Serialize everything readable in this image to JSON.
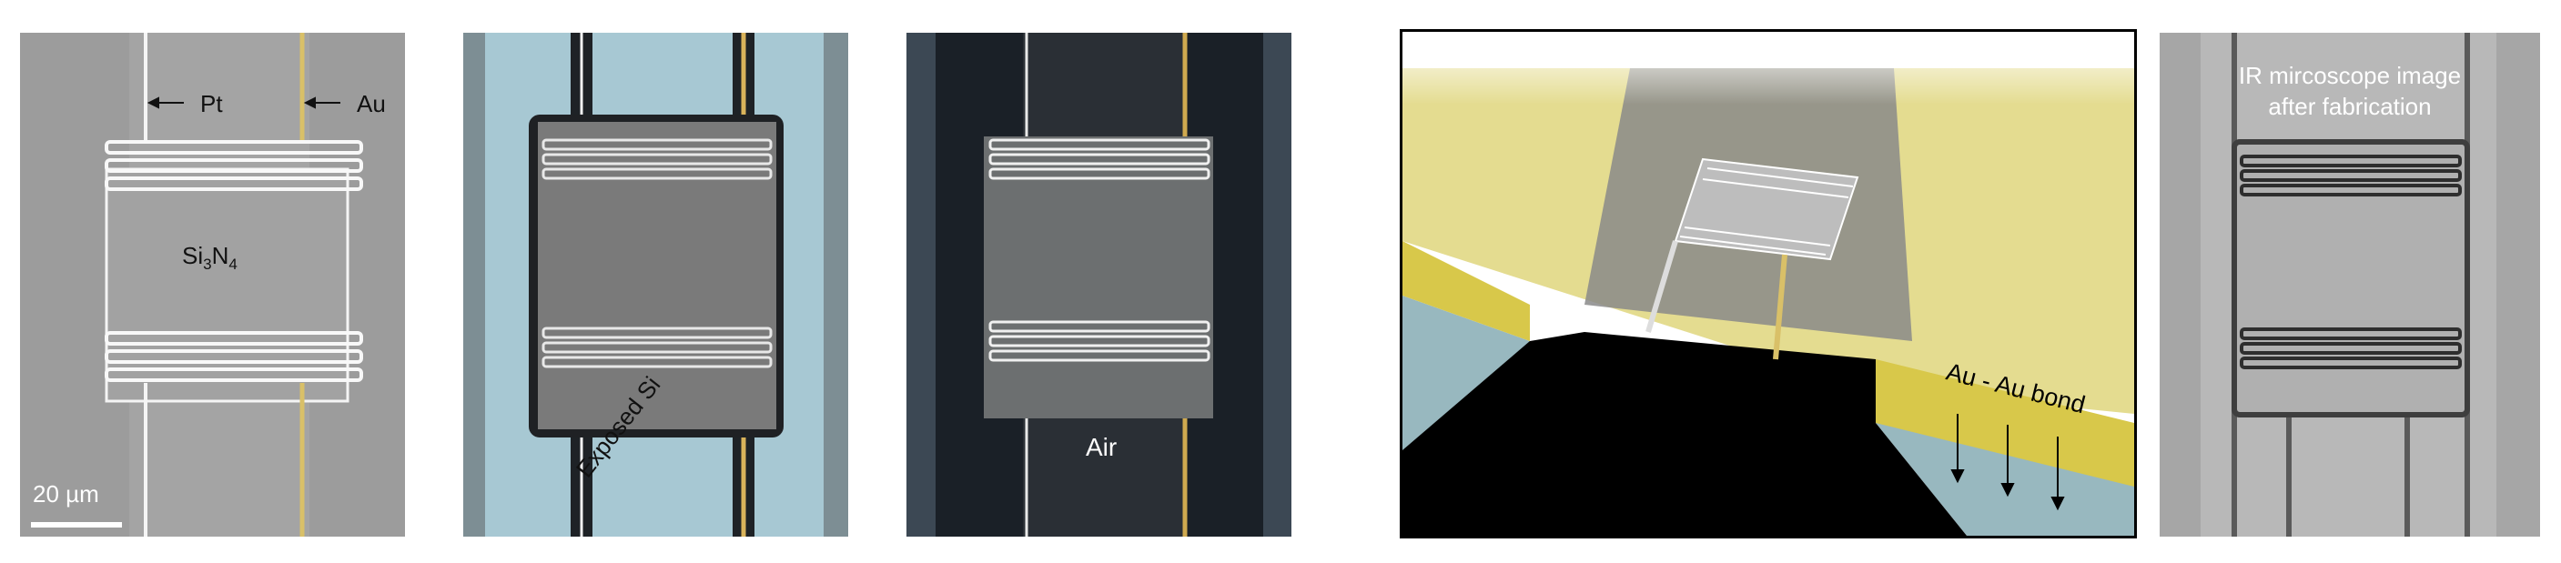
{
  "panel_a": {
    "pt_label": "Pt",
    "au_label": "Au",
    "material_main": "Si",
    "material_sub1": "3",
    "material_mid": "N",
    "material_sub2": "4",
    "scale_label": "20 µm"
  },
  "panel_b": {
    "region_label": "Exposed Si"
  },
  "panel_c": {
    "region_label": "Air"
  },
  "panel_d": {
    "bond_label": "Au - Au bond"
  },
  "panel_e": {
    "caption_line1": "IR mircoscope image",
    "caption_line2": "after fabrication"
  },
  "colors": {
    "pt_wire": "#ffffff",
    "au_wire": "#d9c068",
    "gold_pad": "#e4dc90",
    "membrane_gray": "#8e8e8e",
    "exposed_si": "#a7c8d3",
    "air_dark": "#1a2027"
  }
}
